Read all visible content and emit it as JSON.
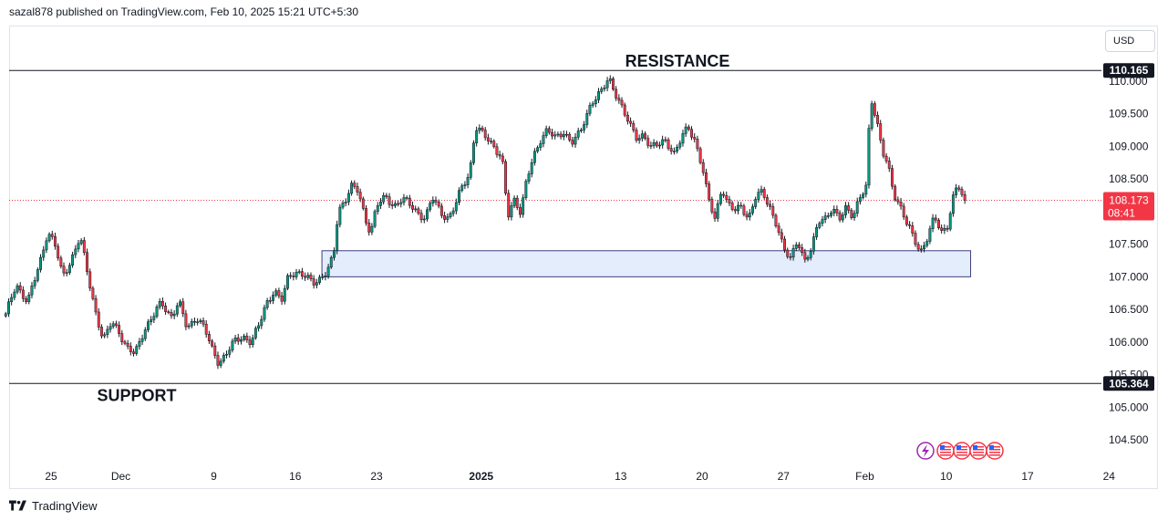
{
  "header": {
    "attribution": "sazal878 published on TradingView.com, Feb 10, 2025 15:21 UTC+5:30"
  },
  "currency": {
    "label": "USD"
  },
  "footer": {
    "brand": "TradingView"
  },
  "chart_data": {
    "type": "candlestick",
    "title": "",
    "xlabel": "",
    "ylabel": "",
    "ylim": [
      104.3,
      111.05
    ],
    "y_ticks": [
      "104.500",
      "105.000",
      "105.500",
      "106.000",
      "106.500",
      "107.000",
      "107.500",
      "108.000",
      "108.500",
      "109.000",
      "109.500",
      "110.000"
    ],
    "x_ticks": [
      "25",
      "Dec",
      "9",
      "16",
      "23",
      "2025",
      "13",
      "20",
      "27",
      "Feb",
      "10",
      "17",
      "24"
    ],
    "x_tick_days": [
      0,
      6,
      14,
      21,
      28,
      37,
      49,
      56,
      63,
      70,
      77,
      84,
      91
    ],
    "x_unit": "days from Nov 25, 2024",
    "grid": false,
    "resistance": {
      "label": "RESISTANCE",
      "value": 110.165,
      "value_label": "110.165"
    },
    "support": {
      "label": "SUPPORT",
      "value": 105.364,
      "value_label": "105.364"
    },
    "last_price": {
      "value": 108.173,
      "value_label": "108.173",
      "countdown": "08:41"
    },
    "demand_zone": {
      "x_from": 23.3,
      "x_to": 79.1,
      "y_low": 107.0,
      "y_high": 107.4
    },
    "price_path": [
      [
        -3.9,
        106.4
      ],
      [
        -3.0,
        106.9
      ],
      [
        -2.0,
        106.6
      ],
      [
        -1.0,
        107.2
      ],
      [
        -0.3,
        107.7
      ],
      [
        0.3,
        107.5
      ],
      [
        1.0,
        107.0
      ],
      [
        1.8,
        107.3
      ],
      [
        2.5,
        107.6
      ],
      [
        3.2,
        107.0
      ],
      [
        3.8,
        106.5
      ],
      [
        4.5,
        106.0
      ],
      [
        5.2,
        106.3
      ],
      [
        5.8,
        106.2
      ],
      [
        6.5,
        105.9
      ],
      [
        7.2,
        105.8
      ],
      [
        8.0,
        106.2
      ],
      [
        8.8,
        106.4
      ],
      [
        9.5,
        106.6
      ],
      [
        10.3,
        106.4
      ],
      [
        11.0,
        106.6
      ],
      [
        11.7,
        106.2
      ],
      [
        12.5,
        106.4
      ],
      [
        13.2,
        106.2
      ],
      [
        13.8,
        105.9
      ],
      [
        14.4,
        105.7
      ],
      [
        15.0,
        105.8
      ],
      [
        15.8,
        106.0
      ],
      [
        16.5,
        106.1
      ],
      [
        17.2,
        106.0
      ],
      [
        17.8,
        106.2
      ],
      [
        18.5,
        106.6
      ],
      [
        19.2,
        106.8
      ],
      [
        19.8,
        106.6
      ],
      [
        20.4,
        107.0
      ],
      [
        21.0,
        107.1
      ],
      [
        21.8,
        107.0
      ],
      [
        22.5,
        106.9
      ],
      [
        23.2,
        107.0
      ],
      [
        23.8,
        107.1
      ],
      [
        24.3,
        107.3
      ],
      [
        24.7,
        108.0
      ],
      [
        25.3,
        108.2
      ],
      [
        25.8,
        108.4
      ],
      [
        26.4,
        108.3
      ],
      [
        27.0,
        107.9
      ],
      [
        27.5,
        107.7
      ],
      [
        28.0,
        108.1
      ],
      [
        28.8,
        108.2
      ],
      [
        29.5,
        108.1
      ],
      [
        30.2,
        108.2
      ],
      [
        30.8,
        108.1
      ],
      [
        31.5,
        108.0
      ],
      [
        32.2,
        107.9
      ],
      [
        32.8,
        108.2
      ],
      [
        33.5,
        108.0
      ],
      [
        34.2,
        107.9
      ],
      [
        34.8,
        108.1
      ],
      [
        35.4,
        108.4
      ],
      [
        36.0,
        108.6
      ],
      [
        36.5,
        109.3
      ],
      [
        37.0,
        109.2
      ],
      [
        37.6,
        109.1
      ],
      [
        38.2,
        109.0
      ],
      [
        38.8,
        108.8
      ],
      [
        39.3,
        107.9
      ],
      [
        39.9,
        108.2
      ],
      [
        40.4,
        108.0
      ],
      [
        40.9,
        108.5
      ],
      [
        41.5,
        108.8
      ],
      [
        42.1,
        109.1
      ],
      [
        42.7,
        109.3
      ],
      [
        43.4,
        109.1
      ],
      [
        44.1,
        109.2
      ],
      [
        44.8,
        109.1
      ],
      [
        45.5,
        109.2
      ],
      [
        46.0,
        109.4
      ],
      [
        46.5,
        109.7
      ],
      [
        47.0,
        109.8
      ],
      [
        47.5,
        109.9
      ],
      [
        48.0,
        110.0
      ],
      [
        48.6,
        109.8
      ],
      [
        49.2,
        109.6
      ],
      [
        49.8,
        109.3
      ],
      [
        50.4,
        109.1
      ],
      [
        51.0,
        109.2
      ],
      [
        51.6,
        109.0
      ],
      [
        52.2,
        109.0
      ],
      [
        52.9,
        109.1
      ],
      [
        53.6,
        108.9
      ],
      [
        54.2,
        109.1
      ],
      [
        54.8,
        109.3
      ],
      [
        55.4,
        109.1
      ],
      [
        56.0,
        108.7
      ],
      [
        56.5,
        108.2
      ],
      [
        57.1,
        107.9
      ],
      [
        57.7,
        108.4
      ],
      [
        58.2,
        108.1
      ],
      [
        58.8,
        108.0
      ],
      [
        59.4,
        108.1
      ],
      [
        60.0,
        107.9
      ],
      [
        60.6,
        108.2
      ],
      [
        61.2,
        108.3
      ],
      [
        61.8,
        108.1
      ],
      [
        62.4,
        107.8
      ],
      [
        63.0,
        107.4
      ],
      [
        63.6,
        107.3
      ],
      [
        64.2,
        107.6
      ],
      [
        64.8,
        107.2
      ],
      [
        65.4,
        107.4
      ],
      [
        66.0,
        107.9
      ],
      [
        66.6,
        107.9
      ],
      [
        67.2,
        108.0
      ],
      [
        67.8,
        107.9
      ],
      [
        68.4,
        108.1
      ],
      [
        69.0,
        107.9
      ],
      [
        69.6,
        108.2
      ],
      [
        70.1,
        108.4
      ],
      [
        70.5,
        109.8
      ],
      [
        71.0,
        109.4
      ],
      [
        71.5,
        108.9
      ],
      [
        72.0,
        108.7
      ],
      [
        72.5,
        108.3
      ],
      [
        73.0,
        108.1
      ],
      [
        73.6,
        107.8
      ],
      [
        74.2,
        107.6
      ],
      [
        74.8,
        107.4
      ],
      [
        75.4,
        107.6
      ],
      [
        76.0,
        107.9
      ],
      [
        76.6,
        107.7
      ],
      [
        77.1,
        107.8
      ],
      [
        77.6,
        108.2
      ],
      [
        78.0,
        108.4
      ],
      [
        78.5,
        108.17
      ]
    ]
  }
}
